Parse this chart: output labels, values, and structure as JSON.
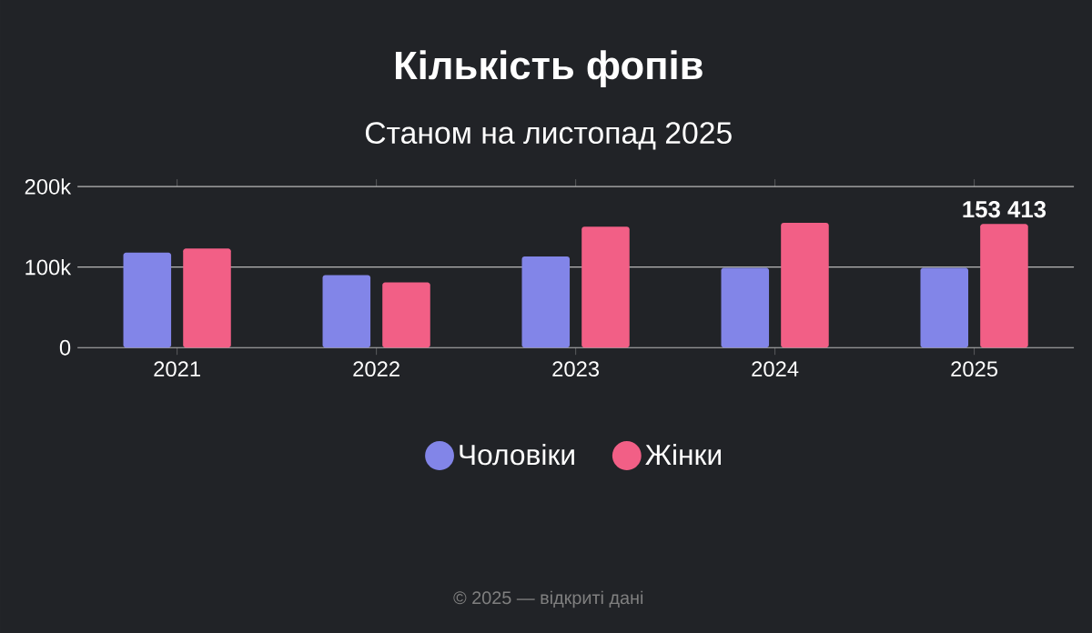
{
  "chart_data": {
    "type": "bar",
    "title": "Кількість фопів",
    "subtitle": "Станом на листопад 2025",
    "categories": [
      "2021",
      "2022",
      "2023",
      "2024",
      "2025"
    ],
    "series": [
      {
        "name": "Чоловіки",
        "color": "#8285e8",
        "values": [
          118000,
          90000,
          113000,
          99000,
          99000
        ]
      },
      {
        "name": "Жінки",
        "color": "#f25f86",
        "values": [
          123000,
          81000,
          150000,
          155000,
          153413
        ],
        "value_labels": [
          null,
          null,
          null,
          null,
          "153 413"
        ]
      }
    ],
    "ylim": [
      0,
      200000
    ],
    "yticks": [
      {
        "value": 0,
        "label": "0"
      },
      {
        "value": 100000,
        "label": "100k"
      },
      {
        "value": 200000,
        "label": "200k"
      }
    ],
    "grid": "y",
    "legend": "bottom",
    "annotations": [
      "© 2025 — відкриті дані"
    ]
  }
}
